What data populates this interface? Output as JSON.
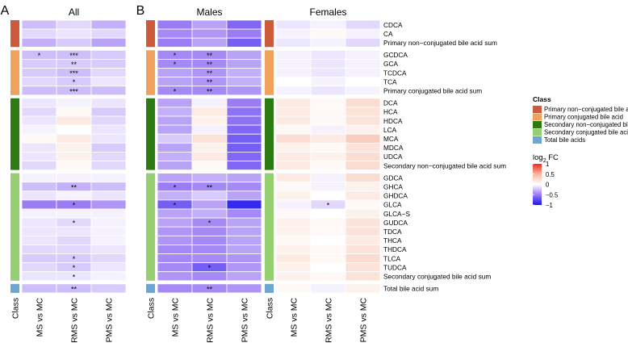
{
  "panel_letters": [
    "A",
    "B"
  ],
  "colors": {
    "neg_extreme": "#1a14f0",
    "neg_mid": "#9b7cf4",
    "zero": "#ffffff",
    "pos_mid": "#f6b8a0",
    "pos_extreme": "#ef2a22"
  },
  "chart_data": {
    "type": "heatmap",
    "value_label": "log2 FC",
    "color_range": [
      -1,
      1
    ],
    "legend": {
      "class_title": "Class",
      "scale_title_base": "log",
      "scale_title_sub": "2",
      "scale_title_rest": " FC",
      "ticks": [
        "1",
        "0.5",
        "0",
        "−0.5",
        "−1"
      ],
      "tick_values": [
        1,
        0.5,
        0,
        -0.5,
        -1
      ]
    },
    "classes": [
      {
        "name": "Primary non−conjugated bile acid",
        "color": "#cc5a3b"
      },
      {
        "name": "Primary conjugated bile acid",
        "color": "#f0a25c"
      },
      {
        "name": "Secondary non−conjugated bile acid",
        "color": "#2e7a12"
      },
      {
        "name": "Secondary conjugated bile acid",
        "color": "#96cf72"
      },
      {
        "name": "Total bile acids",
        "color": "#6fa6cf"
      }
    ],
    "class_axis_label": "Class",
    "columns": [
      "MS vs MC",
      "RRMS vs MC",
      "PMS vs MC"
    ],
    "groups": [
      {
        "class": 0,
        "rows": [
          "CDCA",
          "CA",
          "Primary non−conjugated bile acid sum"
        ]
      },
      {
        "class": 1,
        "rows": [
          "GCDCA",
          "GCA",
          "TCDCA",
          "TCA",
          "Primary conjugated bile acid sum"
        ]
      },
      {
        "class": 2,
        "rows": [
          "DCA",
          "HCA",
          "HDCA",
          "LCA",
          "MCA",
          "MDCA",
          "UDCA",
          "Secondary non−conjugated bile acid sum"
        ]
      },
      {
        "class": 3,
        "rows": [
          "GDCA",
          "GHCA",
          "GHDCA",
          "GLCA",
          "GLCA−S",
          "GUDCA",
          "TDCA",
          "THCA",
          "THDCA",
          "TLCA",
          "TUDCA",
          "Secondary conjugated bile acid sum"
        ]
      },
      {
        "class": 4,
        "rows": [
          "Total bile acid sum"
        ]
      }
    ],
    "panels": [
      {
        "title": "All",
        "values": [
          [
            -0.25,
            -0.15,
            -0.3
          ],
          [
            -0.15,
            -0.1,
            -0.15
          ],
          [
            -0.3,
            -0.2,
            -0.35
          ],
          [
            -0.25,
            -0.25,
            -0.2
          ],
          [
            -0.2,
            -0.2,
            -0.2
          ],
          [
            -0.2,
            -0.25,
            -0.15
          ],
          [
            -0.15,
            -0.2,
            -0.1
          ],
          [
            -0.25,
            -0.25,
            -0.25
          ],
          [
            -0.1,
            -0.05,
            -0.1
          ],
          [
            -0.15,
            0.05,
            -0.2
          ],
          [
            -0.1,
            0.15,
            -0.15
          ],
          [
            -0.05,
            0,
            -0.1
          ],
          [
            0.05,
            0.15,
            -0.1
          ],
          [
            -0.1,
            0.1,
            -0.2
          ],
          [
            -0.1,
            0.1,
            -0.15
          ],
          [
            -0.15,
            0.05,
            -0.15
          ],
          [
            -0.05,
            -0.05,
            -0.05
          ],
          [
            -0.25,
            -0.3,
            -0.25
          ],
          [
            -0.1,
            -0.05,
            -0.1
          ],
          [
            -0.5,
            -0.5,
            -0.4
          ],
          [
            -0.05,
            -0.05,
            -0.05
          ],
          [
            -0.1,
            -0.15,
            -0.05
          ],
          [
            -0.1,
            -0.1,
            -0.05
          ],
          [
            -0.1,
            -0.15,
            -0.05
          ],
          [
            -0.15,
            -0.15,
            -0.1
          ],
          [
            -0.2,
            -0.2,
            -0.15
          ],
          [
            -0.15,
            -0.2,
            -0.1
          ],
          [
            -0.1,
            -0.1,
            -0.05
          ],
          [
            -0.25,
            -0.25,
            -0.2
          ]
        ],
        "stars": [
          [
            "",
            "",
            ""
          ],
          [
            "",
            "",
            ""
          ],
          [
            "",
            "",
            ""
          ],
          [
            "*",
            "***",
            ""
          ],
          [
            "",
            "**",
            ""
          ],
          [
            "",
            "***",
            ""
          ],
          [
            "",
            "*",
            ""
          ],
          [
            "",
            "***",
            ""
          ],
          [
            "",
            "",
            ""
          ],
          [
            "",
            "",
            ""
          ],
          [
            "",
            "",
            ""
          ],
          [
            "",
            "",
            ""
          ],
          [
            "",
            "",
            ""
          ],
          [
            "",
            "",
            ""
          ],
          [
            "",
            "",
            ""
          ],
          [
            "",
            "",
            ""
          ],
          [
            "",
            "",
            ""
          ],
          [
            "",
            "**",
            ""
          ],
          [
            "",
            "",
            ""
          ],
          [
            "",
            "*",
            ""
          ],
          [
            "",
            "",
            ""
          ],
          [
            "",
            "*",
            ""
          ],
          [
            "",
            "",
            ""
          ],
          [
            "",
            "",
            ""
          ],
          [
            "",
            "",
            ""
          ],
          [
            "",
            "*",
            ""
          ],
          [
            "",
            "*",
            ""
          ],
          [
            "",
            "*",
            ""
          ],
          [
            "",
            "**",
            ""
          ]
        ]
      },
      {
        "title": "Males",
        "values": [
          [
            -0.5,
            -0.35,
            -0.6
          ],
          [
            -0.45,
            -0.4,
            -0.5
          ],
          [
            -0.5,
            -0.35,
            -0.65
          ],
          [
            -0.45,
            -0.45,
            -0.35
          ],
          [
            -0.45,
            -0.45,
            -0.35
          ],
          [
            -0.35,
            -0.4,
            -0.3
          ],
          [
            -0.35,
            -0.4,
            -0.3
          ],
          [
            -0.45,
            -0.45,
            -0.4
          ],
          [
            -0.35,
            -0.05,
            -0.5
          ],
          [
            -0.3,
            0.15,
            -0.55
          ],
          [
            -0.35,
            0.1,
            -0.55
          ],
          [
            -0.35,
            -0.05,
            -0.6
          ],
          [
            -0.2,
            0.2,
            -0.65
          ],
          [
            -0.35,
            0.1,
            -0.65
          ],
          [
            -0.3,
            0.15,
            -0.6
          ],
          [
            -0.35,
            0.05,
            -0.6
          ],
          [
            -0.35,
            -0.3,
            -0.35
          ],
          [
            -0.5,
            -0.45,
            -0.45
          ],
          [
            -0.3,
            -0.2,
            -0.35
          ],
          [
            -0.65,
            -0.35,
            -0.9
          ],
          [
            -0.35,
            -0.3,
            -0.45
          ],
          [
            -0.35,
            -0.45,
            -0.35
          ],
          [
            -0.4,
            -0.45,
            -0.35
          ],
          [
            -0.4,
            -0.45,
            -0.35
          ],
          [
            -0.45,
            -0.45,
            -0.35
          ],
          [
            -0.45,
            -0.45,
            -0.4
          ],
          [
            -0.45,
            -0.65,
            -0.4
          ],
          [
            -0.4,
            -0.45,
            -0.35
          ],
          [
            -0.45,
            -0.45,
            -0.4
          ]
        ],
        "stars": [
          [
            "",
            "",
            ""
          ],
          [
            "",
            "",
            ""
          ],
          [
            "",
            "",
            ""
          ],
          [
            "*",
            "**",
            ""
          ],
          [
            "*",
            "**",
            ""
          ],
          [
            "",
            "**",
            ""
          ],
          [
            "",
            "**",
            ""
          ],
          [
            "*",
            "**",
            ""
          ],
          [
            "",
            "",
            ""
          ],
          [
            "",
            "",
            ""
          ],
          [
            "",
            "",
            ""
          ],
          [
            "",
            "",
            ""
          ],
          [
            "",
            "",
            ""
          ],
          [
            "",
            "",
            ""
          ],
          [
            "",
            "",
            ""
          ],
          [
            "",
            "",
            ""
          ],
          [
            "",
            "",
            ""
          ],
          [
            "*",
            "**",
            ""
          ],
          [
            "",
            "",
            ""
          ],
          [
            "*",
            "",
            ""
          ],
          [
            "",
            "",
            ""
          ],
          [
            "",
            "*",
            ""
          ],
          [
            "",
            "",
            ""
          ],
          [
            "",
            "",
            ""
          ],
          [
            "",
            "",
            ""
          ],
          [
            "",
            "",
            ""
          ],
          [
            "",
            "*",
            ""
          ],
          [
            "",
            "",
            ""
          ],
          [
            "",
            "**",
            ""
          ]
        ]
      },
      {
        "title": "Females",
        "values": [
          [
            -0.1,
            -0.05,
            -0.15
          ],
          [
            -0.05,
            0.05,
            -0.05
          ],
          [
            -0.1,
            -0.05,
            -0.15
          ],
          [
            -0.05,
            -0.1,
            -0.05
          ],
          [
            -0.05,
            -0.1,
            -0.05
          ],
          [
            -0.05,
            -0.1,
            -0.05
          ],
          [
            0,
            -0.05,
            0
          ],
          [
            -0.05,
            -0.1,
            -0.05
          ],
          [
            0.15,
            0.05,
            0.25
          ],
          [
            0.15,
            0.05,
            0.2
          ],
          [
            0.15,
            0.05,
            0.2
          ],
          [
            0.05,
            -0.05,
            0.1
          ],
          [
            0.25,
            0.15,
            0.35
          ],
          [
            0.1,
            0.05,
            0.2
          ],
          [
            0.15,
            0.1,
            0.25
          ],
          [
            0.15,
            0.05,
            0.25
          ],
          [
            0.15,
            -0.05,
            0.25
          ],
          [
            0.05,
            -0.05,
            0.1
          ],
          [
            0.1,
            0,
            0.15
          ],
          [
            -0.05,
            -0.15,
            0.05
          ],
          [
            0.05,
            0,
            0.1
          ],
          [
            0.1,
            0.05,
            0.2
          ],
          [
            0.1,
            0.05,
            0.2
          ],
          [
            0.05,
            0,
            0.15
          ],
          [
            0.1,
            0.05,
            0.2
          ],
          [
            0.15,
            0.05,
            0.25
          ],
          [
            0.1,
            0,
            0.2
          ],
          [
            0.1,
            0.05,
            0.2
          ],
          [
            0.05,
            -0.05,
            0.1
          ]
        ],
        "stars": [
          [
            "",
            "",
            ""
          ],
          [
            "",
            "",
            ""
          ],
          [
            "",
            "",
            ""
          ],
          [
            "",
            "",
            ""
          ],
          [
            "",
            "",
            ""
          ],
          [
            "",
            "",
            ""
          ],
          [
            "",
            "",
            ""
          ],
          [
            "",
            "",
            ""
          ],
          [
            "",
            "",
            ""
          ],
          [
            "",
            "",
            ""
          ],
          [
            "",
            "",
            ""
          ],
          [
            "",
            "",
            ""
          ],
          [
            "",
            "",
            ""
          ],
          [
            "",
            "",
            ""
          ],
          [
            "",
            "",
            ""
          ],
          [
            "",
            "",
            ""
          ],
          [
            "",
            "",
            ""
          ],
          [
            "",
            "",
            ""
          ],
          [
            "",
            "",
            ""
          ],
          [
            "",
            "*",
            ""
          ],
          [
            "",
            "",
            ""
          ],
          [
            "",
            "",
            ""
          ],
          [
            "",
            "",
            ""
          ],
          [
            "",
            "",
            ""
          ],
          [
            "",
            "",
            ""
          ],
          [
            "",
            "",
            ""
          ],
          [
            "",
            "",
            ""
          ],
          [
            "",
            "",
            ""
          ],
          [
            "",
            "",
            ""
          ]
        ]
      }
    ]
  }
}
